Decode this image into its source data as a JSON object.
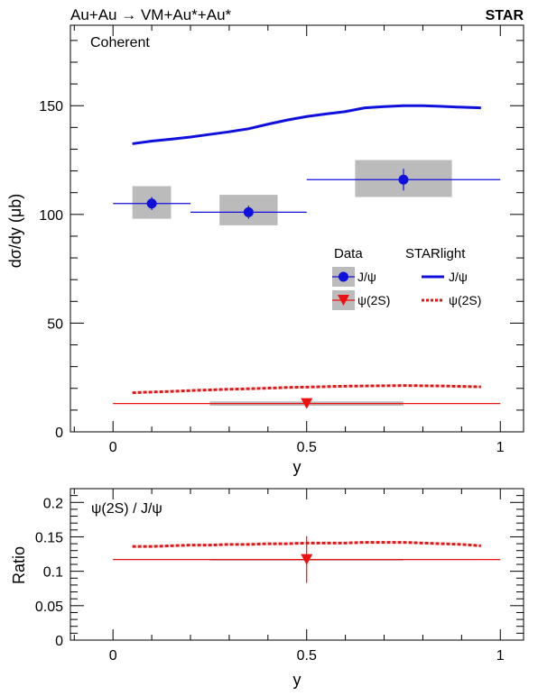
{
  "header": {
    "reaction": "Au+Au → VM+Au*+Au*",
    "experiment": "STAR"
  },
  "chart_data": [
    {
      "type": "scatter",
      "panel": "cross-section",
      "annotation": "Coherent",
      "xlabel": "y",
      "ylabel": "dσ/dy (μb)",
      "xlim": [
        -0.11,
        1.06
      ],
      "ylim": [
        0,
        187
      ],
      "xticks": [
        "0",
        "0.5",
        "1"
      ],
      "yticks": [
        "0",
        "50",
        "100",
        "150"
      ],
      "legend": {
        "placement": "right-middle",
        "data_header": "Data",
        "model_header": "STARlight",
        "entries": [
          "J/ψ",
          "ψ(2S)"
        ]
      },
      "colors": {
        "jpsi": "#1010dd",
        "psi2s": "#ee1111",
        "syst": "#bbbbbb"
      },
      "series": [
        {
          "name": "J/ψ",
          "kind": "data",
          "points": [
            {
              "x": 0.1,
              "xlo": 0.0,
              "xhi": 0.2,
              "y": 105,
              "stat": 3,
              "sys_lo": 98,
              "sys_hi": 113,
              "sys_xlo": 0.05,
              "sys_xhi": 0.15
            },
            {
              "x": 0.35,
              "xlo": 0.2,
              "xhi": 0.5,
              "y": 101,
              "stat": 3,
              "sys_lo": 95,
              "sys_hi": 109,
              "sys_xlo": 0.275,
              "sys_xhi": 0.425
            },
            {
              "x": 0.75,
              "xlo": 0.5,
              "xhi": 1.0,
              "y": 116,
              "stat": 5,
              "sys_lo": 108,
              "sys_hi": 125,
              "sys_xlo": 0.625,
              "sys_xhi": 0.875
            }
          ]
        },
        {
          "name": "ψ(2S)",
          "kind": "data",
          "points": [
            {
              "x": 0.5,
              "xlo": 0.0,
              "xhi": 1.0,
              "y": 13,
              "stat": 2,
              "sys_lo": 12,
              "sys_hi": 14,
              "sys_xlo": 0.25,
              "sys_xhi": 0.75
            }
          ]
        },
        {
          "name": "J/ψ",
          "kind": "model",
          "x": [
            0.05,
            0.1,
            0.15,
            0.2,
            0.25,
            0.3,
            0.35,
            0.4,
            0.45,
            0.5,
            0.55,
            0.6,
            0.65,
            0.7,
            0.75,
            0.8,
            0.85,
            0.9,
            0.95
          ],
          "y": [
            132.5,
            133.7,
            134.6,
            135.6,
            136.8,
            138.0,
            139.4,
            141.5,
            143.4,
            145.0,
            146.2,
            147.3,
            149.0,
            149.6,
            150.0,
            150.0,
            149.7,
            149.3,
            149.0
          ]
        },
        {
          "name": "ψ(2S)",
          "kind": "model",
          "x": [
            0.05,
            0.1,
            0.15,
            0.2,
            0.25,
            0.3,
            0.35,
            0.4,
            0.45,
            0.5,
            0.55,
            0.6,
            0.65,
            0.7,
            0.75,
            0.8,
            0.85,
            0.9,
            0.95
          ],
          "y": [
            18.0,
            18.3,
            18.6,
            19.0,
            19.3,
            19.6,
            19.8,
            20.1,
            20.4,
            20.6,
            20.8,
            21.0,
            21.1,
            21.2,
            21.3,
            21.2,
            21.1,
            20.9,
            20.7
          ]
        }
      ]
    },
    {
      "type": "scatter",
      "panel": "ratio",
      "annotation": "ψ(2S) / J/ψ",
      "xlabel": "y",
      "ylabel": "Ratio",
      "xlim": [
        -0.11,
        1.06
      ],
      "ylim": [
        0,
        0.22
      ],
      "xticks": [
        "0",
        "0.5",
        "1"
      ],
      "yticks": [
        "0",
        "0.05",
        "0.1",
        "0.15",
        "0.2"
      ],
      "series": [
        {
          "name": "ψ(2S) / J/ψ",
          "kind": "data",
          "points": [
            {
              "x": 0.5,
              "xlo": 0.0,
              "xhi": 1.0,
              "y": 0.117,
              "stat": 0.034,
              "sys_lo": 0.116,
              "sys_hi": 0.118,
              "sys_xlo": 0.25,
              "sys_xhi": 0.75
            }
          ]
        },
        {
          "name": "ψ(2S) / J/ψ",
          "kind": "model",
          "x": [
            0.05,
            0.1,
            0.15,
            0.2,
            0.25,
            0.3,
            0.35,
            0.4,
            0.45,
            0.5,
            0.55,
            0.6,
            0.65,
            0.7,
            0.75,
            0.8,
            0.85,
            0.9,
            0.95
          ],
          "y": [
            0.136,
            0.136,
            0.137,
            0.138,
            0.138,
            0.139,
            0.139,
            0.14,
            0.14,
            0.141,
            0.141,
            0.141,
            0.142,
            0.142,
            0.142,
            0.141,
            0.14,
            0.139,
            0.137
          ]
        }
      ]
    }
  ]
}
